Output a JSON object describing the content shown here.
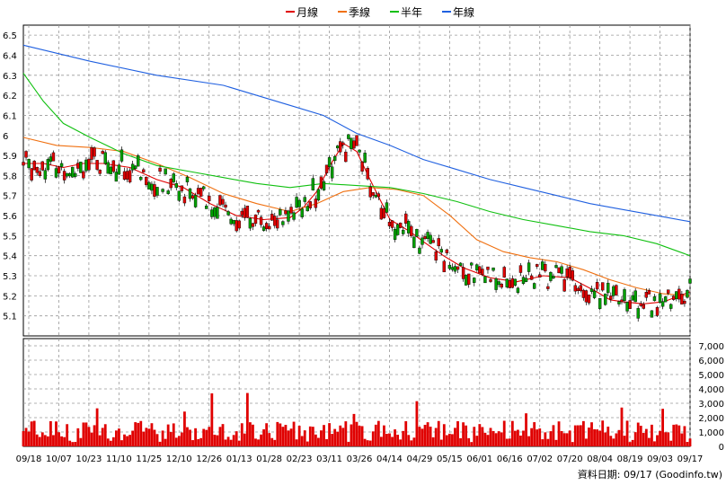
{
  "chart_data": [
    {
      "type": "line",
      "subtype": "candlestick-with-moving-averages",
      "legend_position": "top-center",
      "legend": [
        {
          "name": "月線",
          "color": "#e00000"
        },
        {
          "name": "季線",
          "color": "#f07010"
        },
        {
          "name": "半年",
          "color": "#10c010"
        },
        {
          "name": "年線",
          "color": "#2060e0"
        }
      ],
      "ylim": [
        5.0,
        6.55
      ],
      "yticks": [
        "6.5",
        "6.4",
        "6.3",
        "6.2",
        "6.1",
        "6",
        "5.9",
        "5.8",
        "5.7",
        "5.6",
        "5.5",
        "5.4",
        "5.3",
        "5.2",
        "5.1"
      ],
      "grid": true,
      "series": [
        {
          "name": "月線",
          "color": "#e00000",
          "x": [
            0,
            0.03,
            0.06,
            0.09,
            0.12,
            0.16,
            0.2,
            0.24,
            0.28,
            0.32,
            0.36,
            0.4,
            0.42,
            0.44,
            0.46,
            0.48,
            0.5,
            0.52,
            0.55,
            0.58,
            0.6,
            0.63,
            0.66,
            0.7,
            0.74,
            0.78,
            0.82,
            0.86,
            0.88,
            0.9,
            0.93,
            0.96,
            1.0
          ],
          "y": [
            5.86,
            5.86,
            5.84,
            5.86,
            5.86,
            5.84,
            5.78,
            5.74,
            5.66,
            5.6,
            5.58,
            5.59,
            5.64,
            5.72,
            5.85,
            5.96,
            5.92,
            5.78,
            5.58,
            5.52,
            5.47,
            5.4,
            5.34,
            5.29,
            5.27,
            5.3,
            5.29,
            5.22,
            5.18,
            5.17,
            5.16,
            5.17,
            5.22
          ]
        },
        {
          "name": "季線",
          "color": "#f07010",
          "x": [
            0,
            0.05,
            0.1,
            0.15,
            0.2,
            0.25,
            0.3,
            0.35,
            0.4,
            0.44,
            0.48,
            0.52,
            0.56,
            0.6,
            0.64,
            0.68,
            0.72,
            0.76,
            0.8,
            0.84,
            0.88,
            0.92,
            0.96,
            1.0
          ],
          "y": [
            5.99,
            5.95,
            5.94,
            5.92,
            5.86,
            5.79,
            5.71,
            5.66,
            5.62,
            5.66,
            5.72,
            5.74,
            5.73,
            5.7,
            5.6,
            5.48,
            5.42,
            5.39,
            5.37,
            5.33,
            5.28,
            5.24,
            5.21,
            5.2
          ]
        },
        {
          "name": "半年",
          "color": "#10c010",
          "x": [
            0,
            0.03,
            0.06,
            0.1,
            0.15,
            0.2,
            0.25,
            0.3,
            0.35,
            0.4,
            0.45,
            0.5,
            0.55,
            0.6,
            0.65,
            0.7,
            0.75,
            0.8,
            0.85,
            0.9,
            0.95,
            1.0
          ],
          "y": [
            6.31,
            6.17,
            6.06,
            5.99,
            5.91,
            5.85,
            5.82,
            5.79,
            5.76,
            5.74,
            5.76,
            5.75,
            5.74,
            5.71,
            5.67,
            5.62,
            5.58,
            5.55,
            5.52,
            5.5,
            5.46,
            5.4
          ]
        },
        {
          "name": "年線",
          "color": "#2060e0",
          "x": [
            0,
            0.1,
            0.2,
            0.3,
            0.4,
            0.45,
            0.5,
            0.55,
            0.6,
            0.65,
            0.7,
            0.75,
            0.8,
            0.85,
            0.9,
            0.95,
            1.0
          ],
          "y": [
            6.45,
            6.37,
            6.3,
            6.25,
            6.15,
            6.1,
            6.01,
            5.95,
            5.88,
            5.83,
            5.78,
            5.74,
            5.7,
            5.66,
            5.63,
            5.6,
            5.57
          ]
        }
      ]
    },
    {
      "type": "bar",
      "subtype": "volume",
      "color": "#e00000",
      "ylim": [
        0,
        7500
      ],
      "yticks": [
        "7,000",
        "6,000",
        "5,000",
        "4,000",
        "3,000",
        "2,000",
        "1,000",
        "0"
      ],
      "grid": true
    }
  ],
  "x_axis_labels": [
    "09/18",
    "10/07",
    "10/23",
    "11/10",
    "11/25",
    "12/10",
    "12/26",
    "01/13",
    "01/28",
    "02/23",
    "03/11",
    "03/26",
    "04/14",
    "04/29",
    "05/15",
    "06/01",
    "06/16",
    "07/02",
    "07/20",
    "08/04",
    "08/19",
    "09/03",
    "09/17"
  ],
  "footer": "資料日期: 09/17 (Goodinfo.tw)"
}
